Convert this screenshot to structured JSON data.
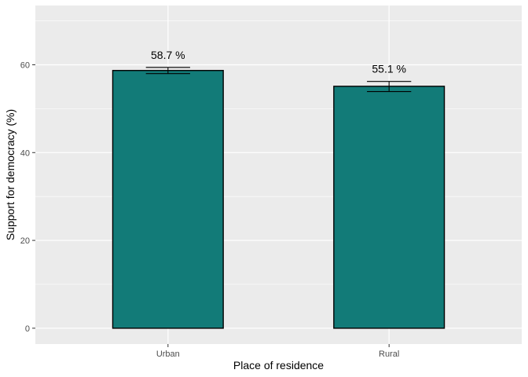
{
  "chart_data": {
    "type": "bar",
    "categories": [
      "Urban",
      "Rural"
    ],
    "values": [
      58.7,
      55.1
    ],
    "error_low": [
      58.0,
      53.9
    ],
    "error_high": [
      59.4,
      56.2
    ],
    "data_labels": [
      "58.7 %",
      "55.1 %"
    ],
    "xlabel": "Place of residence",
    "ylabel": "Support for democracy (%)",
    "ylim": [
      -3.6,
      73.5
    ],
    "yticks": [
      0,
      20,
      40,
      60
    ],
    "ytick_labels": [
      "0",
      "20",
      "40",
      "60"
    ],
    "grid": true,
    "colors": {
      "bar_fill": "#127b78",
      "bar_stroke": "#000000",
      "panel_bg": "#ebebeb",
      "grid": "#ffffff"
    }
  }
}
